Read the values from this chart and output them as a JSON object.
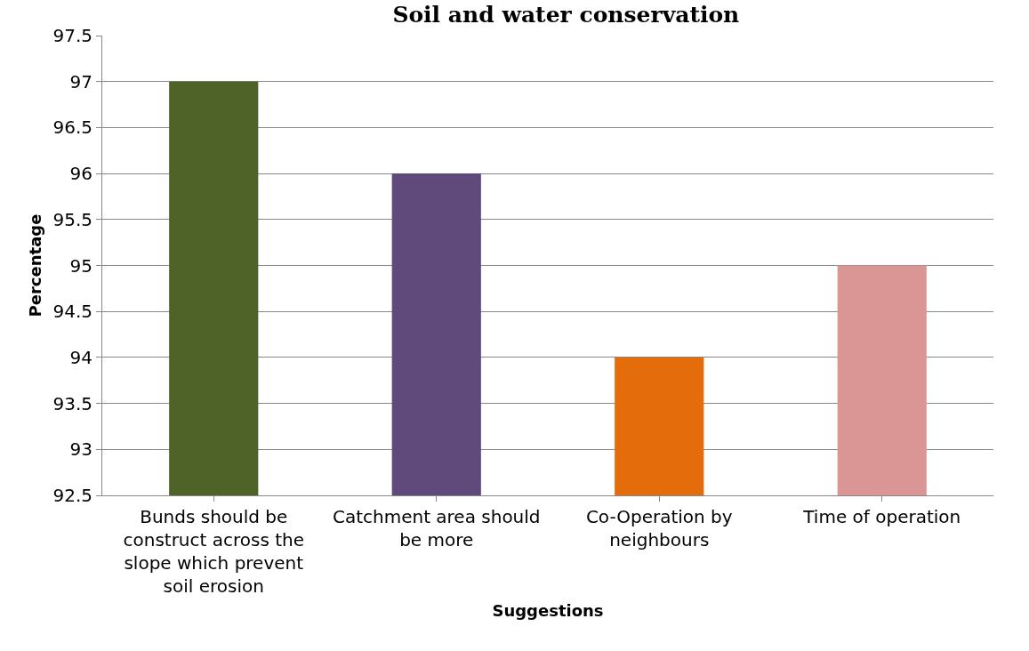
{
  "chart_data": {
    "type": "bar",
    "title": "Soil and water conservation",
    "xlabel": "Suggestions",
    "ylabel": "Percentage",
    "categories": [
      "Bunds should be construct across the slope which prevent soil erosion",
      "Catchment area should be more",
      "Co-Operation by neighbours",
      "Time of operation"
    ],
    "values": [
      97,
      96,
      94,
      95
    ],
    "colors": [
      "#4f6228",
      "#604a7b",
      "#e46c0a",
      "#d99694"
    ],
    "ylim": [
      92.5,
      97.5
    ],
    "yticks": [
      92.5,
      93,
      93.5,
      94,
      94.5,
      95,
      95.5,
      96,
      96.5,
      97,
      97.5
    ],
    "grid": "y"
  }
}
